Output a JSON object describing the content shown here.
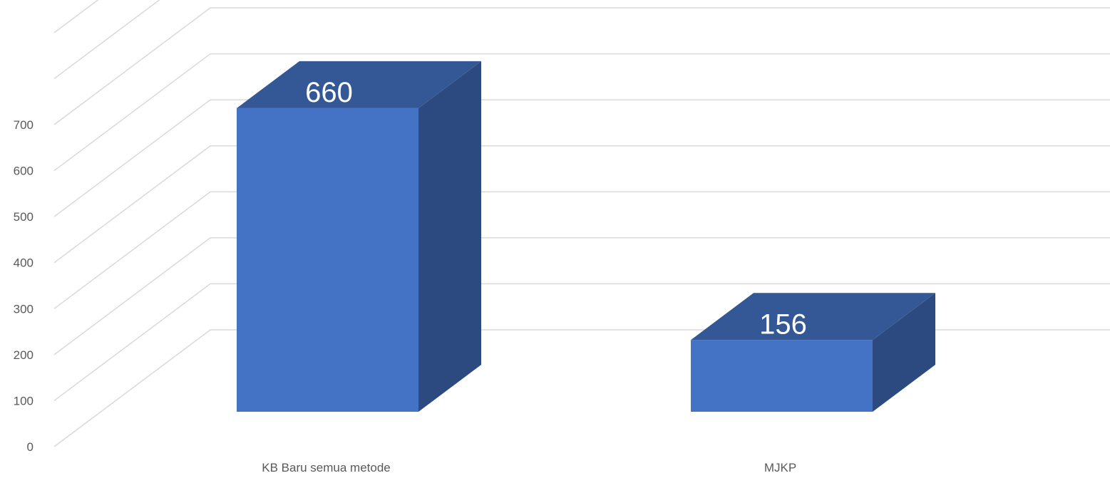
{
  "chart_data": {
    "type": "bar",
    "style": "3d-column",
    "categories": [
      "KB Baru semua metode",
      "MJKP"
    ],
    "values": [
      660,
      156
    ],
    "data_labels": [
      "660",
      "156"
    ],
    "ylim": [
      0,
      700
    ],
    "yticks": [
      0,
      100,
      200,
      300,
      400,
      500,
      600,
      700
    ],
    "grid": true,
    "legend": "none",
    "colors": {
      "front": "#4472c4",
      "top": "#345896",
      "side": "#2c4a7f",
      "grid": "#d9d9d9",
      "text": "#595959"
    }
  }
}
